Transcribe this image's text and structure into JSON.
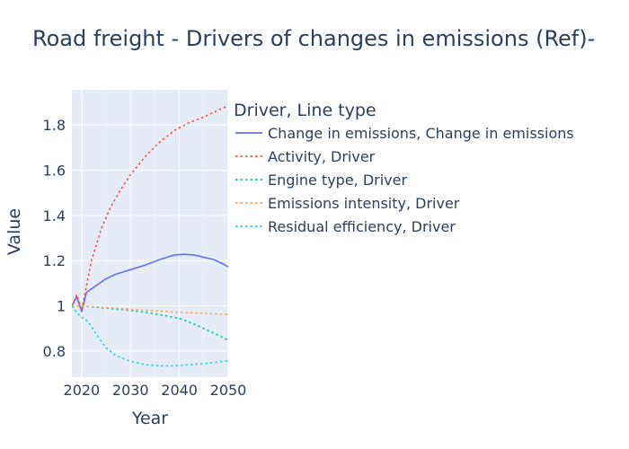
{
  "chart_data": {
    "type": "line",
    "title": "Road freight - Drivers of changes in emissions (Ref)-",
    "xlabel": "Year",
    "ylabel": "Value",
    "xlim": [
      2018,
      2050
    ],
    "ylim": [
      0.685,
      1.955
    ],
    "x_ticks": [
      2020,
      2030,
      2040,
      2050
    ],
    "y_ticks": [
      0.8,
      1,
      1.2,
      1.4,
      1.6,
      1.8
    ],
    "y_tick_labels": [
      "0.8",
      "1",
      "1.2",
      "1.4",
      "1.6",
      "1.8"
    ],
    "grid": true,
    "plot_background": "#e5ecf6",
    "legend": {
      "title": "Driver, Line type",
      "placement": "right"
    },
    "series": [
      {
        "name": "Change in emissions, Change in emissions",
        "color": "#636efa",
        "dash": "solid",
        "x": [
          2018,
          2019,
          2020,
          2021,
          2023,
          2025,
          2027,
          2030,
          2033,
          2036,
          2039,
          2041,
          2043,
          2045,
          2047,
          2049,
          2050
        ],
        "y": [
          1.0,
          1.04,
          0.975,
          1.06,
          1.09,
          1.12,
          1.14,
          1.16,
          1.18,
          1.205,
          1.225,
          1.228,
          1.225,
          1.215,
          1.205,
          1.185,
          1.172
        ]
      },
      {
        "name": "Activity, Driver",
        "color": "#ef553b",
        "dash": "dot",
        "x": [
          2018,
          2019,
          2020,
          2022,
          2024,
          2026,
          2028,
          2030,
          2033,
          2036,
          2039,
          2042,
          2045,
          2048,
          2050
        ],
        "y": [
          1.0,
          1.05,
          0.98,
          1.2,
          1.34,
          1.44,
          1.515,
          1.58,
          1.66,
          1.725,
          1.775,
          1.81,
          1.835,
          1.865,
          1.885
        ]
      },
      {
        "name": "Engine type, Driver",
        "color": "#00cc96",
        "dash": "dot",
        "x": [
          2018,
          2020,
          2025,
          2030,
          2035,
          2040,
          2043,
          2046,
          2048,
          2050
        ],
        "y": [
          1.0,
          1.0,
          0.99,
          0.98,
          0.965,
          0.945,
          0.92,
          0.89,
          0.87,
          0.848
        ]
      },
      {
        "name": "Emissions intensity, Driver",
        "color": "#ffa15a",
        "dash": "dot",
        "x": [
          2018,
          2020,
          2025,
          2030,
          2035,
          2040,
          2045,
          2050
        ],
        "y": [
          1.0,
          1.0,
          0.993,
          0.985,
          0.978,
          0.972,
          0.967,
          0.962
        ]
      },
      {
        "name": "Residual efficiency, Driver",
        "color": "#19d3f3",
        "dash": "dot",
        "x": [
          2018,
          2019,
          2020,
          2021,
          2022,
          2023,
          2025,
          2027,
          2030,
          2033,
          2036,
          2039,
          2042,
          2045,
          2048,
          2050
        ],
        "y": [
          1.0,
          0.97,
          0.95,
          0.935,
          0.91,
          0.875,
          0.815,
          0.78,
          0.755,
          0.74,
          0.735,
          0.735,
          0.74,
          0.745,
          0.752,
          0.758
        ]
      }
    ]
  }
}
